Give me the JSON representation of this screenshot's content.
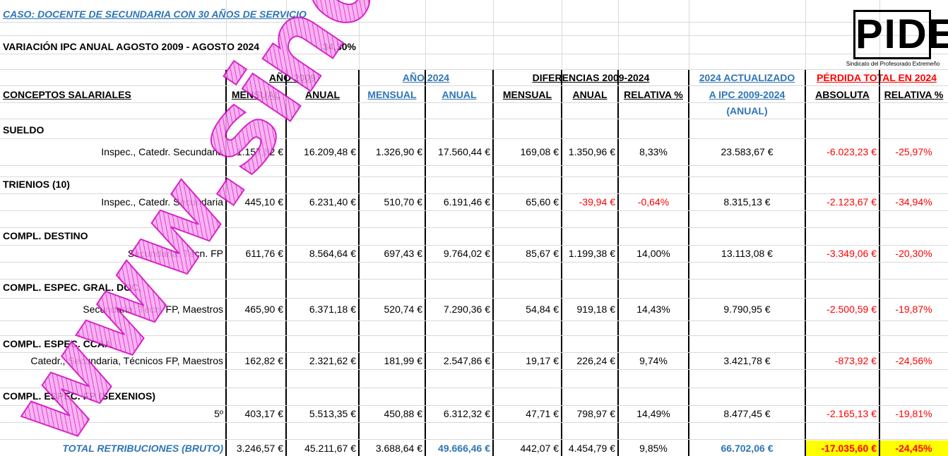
{
  "title": "CASO: DOCENTE DE SECUNDARIA CON 30 AÑOS DE SERVICIO",
  "ipc": {
    "label": "VARIACIÓN IPC ANUAL AGOSTO 2009 - AGOSTO 2024",
    "value": "34,30%"
  },
  "logo": {
    "text": "PIDE",
    "subtitle": "Sindicato del Profesorado Extremeño"
  },
  "watermark": "www.sindica",
  "header": {
    "groups": [
      "AÑO 2009",
      "AÑO 2024",
      "DIFERENCIAS 2009-2024",
      "2024 ACTUALIZADO",
      "PÉRDIDA TOTAL EN 2024"
    ],
    "concepts": "CONCEPTOS SALARIALES",
    "columns": [
      "MENSUAL",
      "ANUAL",
      "MENSUAL",
      "ANUAL",
      "MENSUAL",
      "ANUAL",
      "RELATIVA %",
      "A IPC 2009-2024",
      "ABSOLUTA",
      "RELATIVA %"
    ],
    "note": "(ANUAL)"
  },
  "sections": [
    {
      "name": "SUELDO",
      "item": "Inspec., Catedr. Secundaria",
      "values": [
        "1.157,82 €",
        "16.209,48 €",
        "1.326,90 €",
        "17.560,44 €",
        "169,08 €",
        "1.350,96 €",
        "8,33%",
        "23.583,67 €",
        "-6.023,23 €",
        "-25,97%"
      ]
    },
    {
      "name": "TRIENIOS (10)",
      "item": "Inspec., Catedr. Secundaria",
      "values": [
        "445,10 €",
        "6.231,40 €",
        "510,70 €",
        "6.191,46 €",
        "65,60 €",
        "-39,94 €",
        "-0,64%",
        "8.315,13 €",
        "-2.123,67 €",
        "-34,94%"
      ]
    },
    {
      "name": "COMPL. DESTINO",
      "item": "Secundaria, Técn. FP",
      "values": [
        "611,76 €",
        "8.564,64 €",
        "697,43 €",
        "9.764,02 €",
        "85,67 €",
        "1.199,38 €",
        "14,00%",
        "13.113,08 €",
        "-3.349,06 €",
        "-20,30%"
      ]
    },
    {
      "name": "COMPL. ESPEC. GRAL. DOC.",
      "item": "Secundaria, Técn. FP, Maestros",
      "values": [
        "465,90 €",
        "6.371,18 €",
        "520,74 €",
        "7.290,36 €",
        "54,84 €",
        "919,18 €",
        "14,43%",
        "9.790,95 €",
        "-2.500,59 €",
        "-19,87%"
      ]
    },
    {
      "name": "COMPL. ESPEC. CCAA",
      "item": "Catedr., Secundaria, Técnicos FP, Maestros",
      "values": [
        "162,82 €",
        "2.321,62 €",
        "181,99 €",
        "2.547,86 €",
        "19,17 €",
        "226,24 €",
        "9,74%",
        "3.421,78 €",
        "-873,92 €",
        "-24,56%"
      ]
    },
    {
      "name": "COMPL. ESPEC. FP (SEXENIOS)",
      "item": "5º",
      "values": [
        "403,17 €",
        "5.513,35 €",
        "450,88 €",
        "6.312,32 €",
        "47,71 €",
        "798,97 €",
        "14,49%",
        "8.477,45 €",
        "-2.165,13 €",
        "-19,81%"
      ]
    }
  ],
  "total": {
    "label": "TOTAL RETRIBUCIONES (BRUTO)",
    "values": [
      "3.246,57 €",
      "45.211,67 €",
      "3.688,64 €",
      "49.666,46 €",
      "442,07 €",
      "4.454,79 €",
      "9,85%",
      "66.702,06 €",
      "-17.035,60 €",
      "-24,45%"
    ]
  }
}
